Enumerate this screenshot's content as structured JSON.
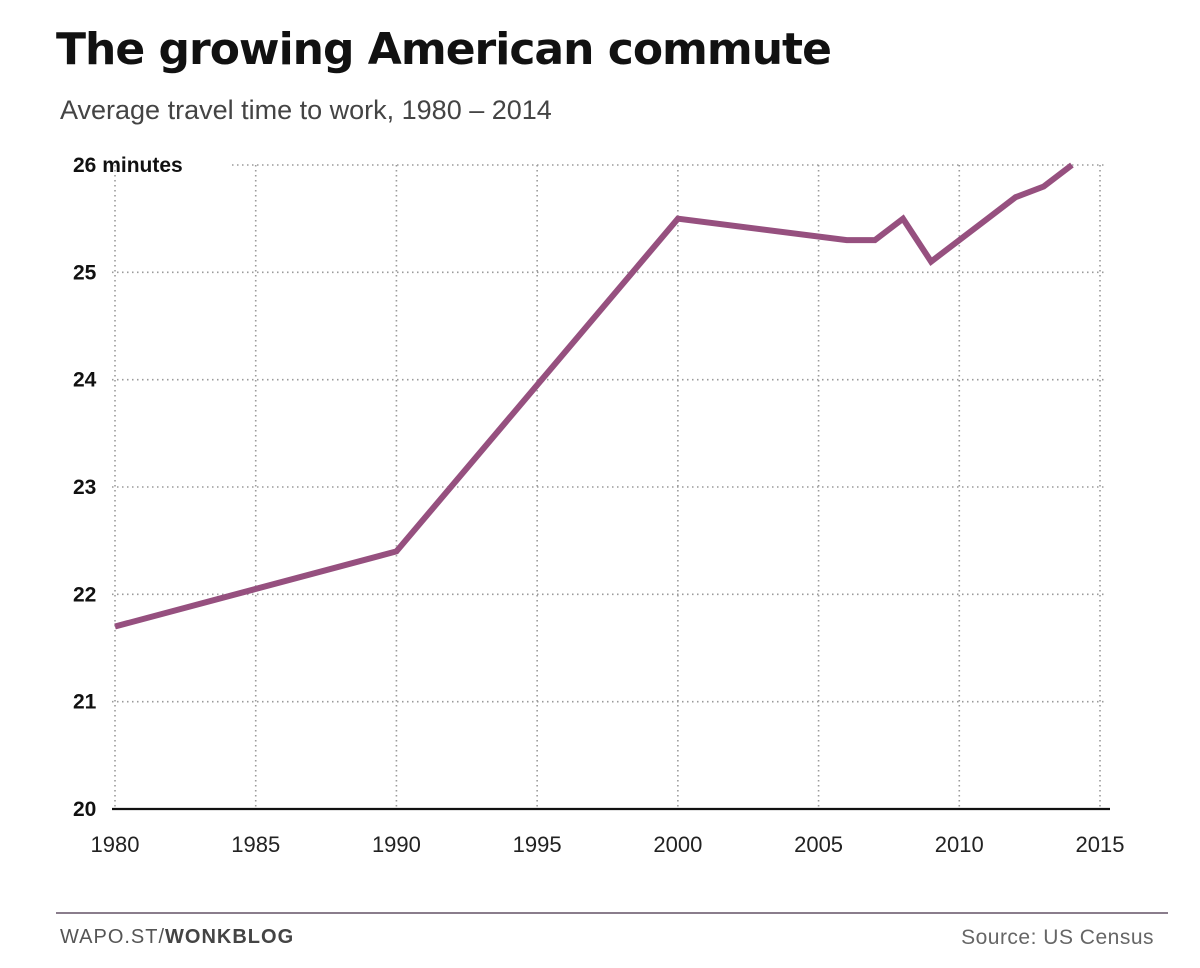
{
  "header": {
    "title": "The growing American commute",
    "subtitle": "Average travel time to work, 1980 – 2014"
  },
  "chart_data": {
    "type": "line",
    "title": "The growing American commute",
    "subtitle": "Average travel time to work, 1980 – 2014",
    "xlabel": "",
    "ylabel": "",
    "xlim": [
      1980,
      2015
    ],
    "ylim": [
      20,
      26
    ],
    "x_ticks": [
      1980,
      1985,
      1990,
      1995,
      2000,
      2005,
      2010,
      2015
    ],
    "x_tick_labels": [
      "1980",
      "1985",
      "1990",
      "1995",
      "2000",
      "2005",
      "2010",
      "2015"
    ],
    "y_ticks": [
      20,
      21,
      22,
      23,
      24,
      25,
      26
    ],
    "y_tick_labels": [
      "20",
      "21",
      "22",
      "23",
      "24",
      "25",
      "26 minutes"
    ],
    "grid": true,
    "grid_style": "dotted",
    "series": [
      {
        "color": "#96507f",
        "x": [
          1980,
          1990,
          2000,
          2006,
          2007,
          2008,
          2009,
          2010,
          2011,
          2012,
          2013,
          2014
        ],
        "y": [
          21.7,
          22.4,
          25.5,
          25.3,
          25.3,
          25.5,
          25.1,
          25.3,
          25.5,
          25.7,
          25.8,
          26.0
        ]
      }
    ]
  },
  "footer": {
    "credit_prefix": "WAPO.ST/",
    "credit_brand": "WONKBLOG",
    "source": "Source: US Census"
  },
  "colors": {
    "line": "#96507f",
    "grid": "#9a9a9a",
    "axis": "#111111",
    "footer_rule": "#8a7d8c"
  }
}
